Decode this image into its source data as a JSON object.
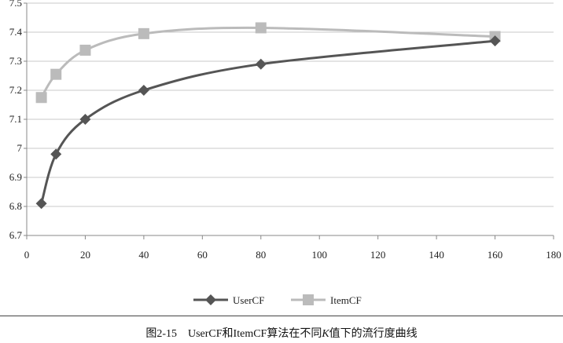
{
  "caption": {
    "prefix": "图2-15　UserCF和ItemCF算法在不同",
    "k": "K",
    "suffix": "值下的流行度曲线"
  },
  "chart_data": {
    "type": "line",
    "title": "",
    "xlabel": "",
    "ylabel": "",
    "xlim": [
      0,
      180
    ],
    "ylim": [
      6.7,
      7.5
    ],
    "x_ticks": [
      "0",
      "20",
      "40",
      "60",
      "80",
      "100",
      "120",
      "140",
      "160",
      "180"
    ],
    "y_ticks": [
      "6.7",
      "6.8",
      "6.9",
      "7",
      "7.1",
      "7.2",
      "7.3",
      "7.4",
      "7.5"
    ],
    "grid": "horizontal",
    "legend_position": "bottom",
    "series": [
      {
        "name": "UserCF",
        "color": "#555555",
        "marker": "diamond",
        "x": [
          5,
          10,
          20,
          40,
          80,
          160
        ],
        "values": [
          6.81,
          6.98,
          7.1,
          7.2,
          7.29,
          7.37
        ]
      },
      {
        "name": "ItemCF",
        "color": "#bbbbbb",
        "marker": "square",
        "x": [
          5,
          10,
          20,
          40,
          80,
          160
        ],
        "values": [
          7.175,
          7.255,
          7.338,
          7.395,
          7.415,
          7.385
        ]
      }
    ]
  }
}
